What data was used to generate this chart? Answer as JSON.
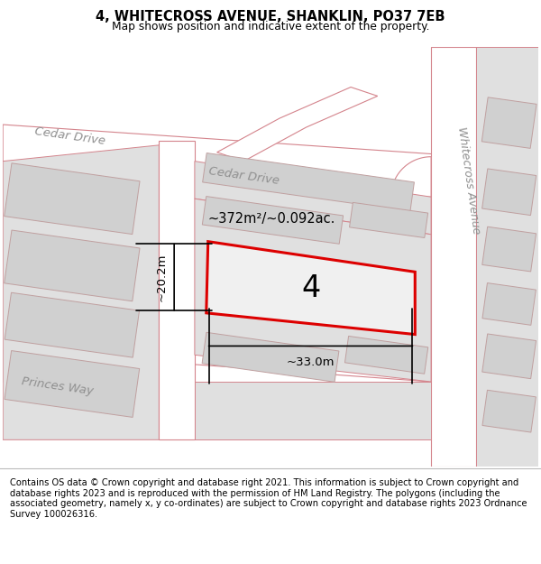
{
  "title": "4, WHITECROSS AVENUE, SHANKLIN, PO37 7EB",
  "subtitle": "Map shows position and indicative extent of the property.",
  "footer": "Contains OS data © Crown copyright and database right 2021. This information is subject to Crown copyright and database rights 2023 and is reproduced with the permission of HM Land Registry. The polygons (including the associated geometry, namely x, y co-ordinates) are subject to Crown copyright and database rights 2023 Ordnance Survey 100026316.",
  "map_bg": "#f2f2f2",
  "road_fill": "#ffffff",
  "road_stroke": "#d4848c",
  "building_fill": "#d0d0d0",
  "building_stroke": "#c0a0a0",
  "block_fill": "#e0e0e0",
  "block_stroke": "#d4848c",
  "highlight_stroke": "#dd0000",
  "highlight_lw": 2.2,
  "plot_label": "4",
  "area_label": "~372m²/~0.092ac.",
  "dim_width": "~33.0m",
  "dim_height": "~20.2m"
}
